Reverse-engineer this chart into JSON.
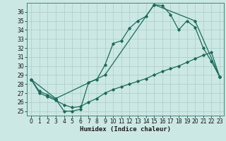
{
  "bg_color": "#cce8e4",
  "grid_color": "#aaccca",
  "line_color": "#1a6b5a",
  "line_width": 0.9,
  "marker": "D",
  "marker_size": 1.8,
  "xlabel": "Humidex (Indice chaleur)",
  "xlabel_fontsize": 6.5,
  "tick_fontsize": 5.5,
  "xlim": [
    -0.5,
    23.5
  ],
  "ylim": [
    24.5,
    37.0
  ],
  "yticks": [
    25,
    26,
    27,
    28,
    29,
    30,
    31,
    32,
    33,
    34,
    35,
    36
  ],
  "xticks": [
    0,
    1,
    2,
    3,
    4,
    5,
    6,
    7,
    8,
    9,
    10,
    11,
    12,
    13,
    14,
    15,
    16,
    17,
    18,
    19,
    20,
    21,
    22,
    23
  ],
  "line1_x": [
    0,
    1,
    2,
    3,
    4,
    5,
    6,
    7,
    8,
    9,
    10,
    11,
    12,
    13,
    14,
    15,
    16,
    17,
    18,
    19,
    20,
    21,
    22,
    23
  ],
  "line1_y": [
    28.5,
    27.2,
    26.8,
    26.3,
    25.0,
    25.0,
    25.2,
    28.2,
    28.5,
    30.1,
    32.5,
    32.8,
    34.2,
    35.0,
    35.5,
    36.8,
    36.7,
    35.7,
    34.0,
    35.0,
    34.3,
    32.0,
    30.5,
    28.8
  ],
  "line2_x": [
    0,
    3,
    9,
    15,
    20,
    23
  ],
  "line2_y": [
    28.5,
    26.4,
    29.0,
    36.8,
    35.0,
    28.8
  ],
  "line3_x": [
    0,
    1,
    2,
    3,
    4,
    5,
    6,
    7,
    8,
    9,
    10,
    11,
    12,
    13,
    14,
    15,
    16,
    17,
    18,
    19,
    20,
    21,
    22,
    23
  ],
  "line3_y": [
    28.5,
    27.0,
    26.6,
    26.2,
    25.7,
    25.4,
    25.5,
    26.0,
    26.4,
    27.0,
    27.4,
    27.7,
    28.0,
    28.3,
    28.6,
    29.0,
    29.4,
    29.7,
    30.0,
    30.4,
    30.8,
    31.2,
    31.5,
    28.8
  ]
}
